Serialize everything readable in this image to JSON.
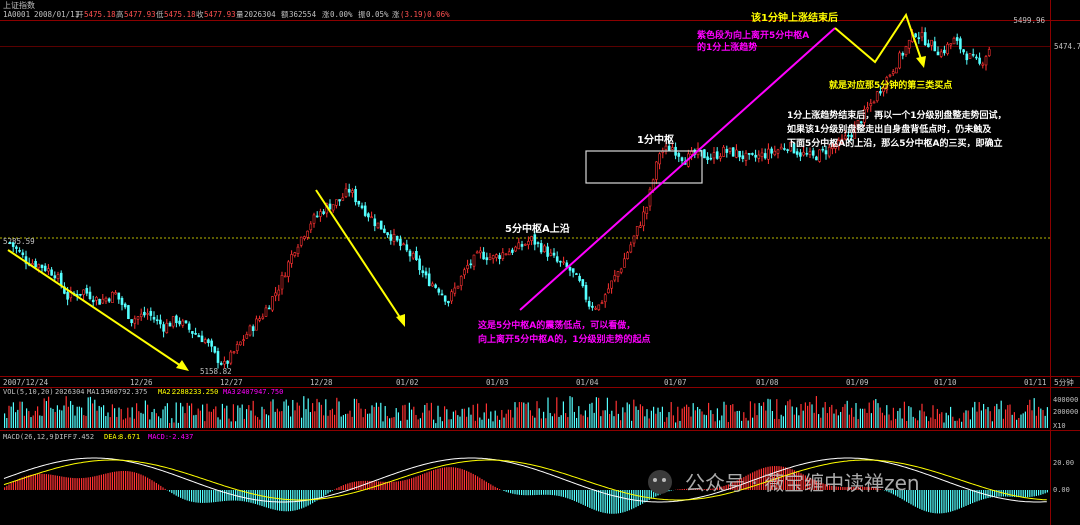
{
  "header": {
    "title": "上证指数",
    "code": "1A0001",
    "date": "2008/01/11",
    "open_label": "开",
    "open": "5475.18",
    "high_label": "高",
    "high": "5477.93",
    "low_label": "低",
    "low": "5475.18",
    "close_label": "收",
    "close": "5477.93",
    "volume_label": "量",
    "volume": "2026304",
    "amount_label": "额",
    "amount": "362554",
    "change_label": "涨",
    "change": "0.00%",
    "amplitude_label": "振",
    "amplitude": "0.05%",
    "rise_label": "涨",
    "rise": "(3.19)0.06%"
  },
  "price_axis": {
    "label_top": "5499.96",
    "label_right": "5474.7",
    "label_left": "5285.59",
    "label_low": "5158.82"
  },
  "date_axis": [
    "2007/12/24",
    "12/26",
    "12/27",
    "12/28",
    "01/02",
    "01/03",
    "01/04",
    "01/07",
    "01/08",
    "01/09",
    "01/10",
    "01/11"
  ],
  "date_axis_unit": "5分钟",
  "volume_panel": {
    "title": "VOL(5,10,20)",
    "value": "2026304",
    "ma1_label": "MA1:",
    "ma1": "1960792.375",
    "ma2_label": "MA2:",
    "ma2": "2288233.250",
    "ma3_label": "MA3:",
    "ma3": "2407947.750",
    "ticks": [
      "400000",
      "200000"
    ],
    "scale": "X10"
  },
  "macd_panel": {
    "title": "MACD(26,12,9)",
    "diff_label": "DIFF:",
    "diff": "7.452",
    "dea_label": "DEA:",
    "dea": "8.671",
    "macd_label": "MACD:",
    "macd": "-2.437",
    "ticks": [
      "20.00",
      "0.00"
    ]
  },
  "annotations": {
    "a1": "该1分钟上涨结束后",
    "a2_line1": "紫色段为向上离开5分中枢A",
    "a2_line2": "的1分上涨趋势",
    "a3": "就是对应那5分钟的第三类买点",
    "a4_line1": "1分上涨趋势结束后，再以一个1分级别盘整走势回试，",
    "a4_line2": "如果该1分级别盘整走出自身盘背低点时，仍未触及",
    "a4_line3": "下面5分中枢A的上沿，那么5分中枢A的三买，即确立",
    "a5": "1分中枢",
    "a6": "5分中枢A上沿",
    "a7_line1": "这是5分中枢A的震荡低点，可以看做，",
    "a7_line2": "向上离开5分中枢A的，1分级别走势的起点"
  },
  "watermark": "公众号 · 薇宝缠中读禅zen",
  "chart_data": {
    "type": "candlestick",
    "title": "上证指数",
    "x_labels": [
      "2007/12/24",
      "12/26",
      "12/27",
      "12/28",
      "01/02",
      "01/03",
      "01/04",
      "01/07",
      "01/08",
      "01/09",
      "01/10",
      "01/11"
    ],
    "ylim": [
      5158.82,
      5499.96
    ],
    "key_levels": {
      "zhongshu_A_upper": 5285.59,
      "low": 5158.82,
      "high": 5499.96
    },
    "price_path": [
      [
        0,
        5285
      ],
      [
        5,
        5268
      ],
      [
        10,
        5262
      ],
      [
        14,
        5255
      ],
      [
        18,
        5232
      ],
      [
        23,
        5238
      ],
      [
        28,
        5228
      ],
      [
        33,
        5235
      ],
      [
        38,
        5210
      ],
      [
        43,
        5216
      ],
      [
        48,
        5203
      ],
      [
        52,
        5210
      ],
      [
        57,
        5198
      ],
      [
        61,
        5190
      ],
      [
        64,
        5175
      ],
      [
        67,
        5165
      ],
      [
        70,
        5178
      ],
      [
        74,
        5196
      ],
      [
        79,
        5215
      ],
      [
        84,
        5242
      ],
      [
        89,
        5280
      ],
      [
        94,
        5305
      ],
      [
        99,
        5320
      ],
      [
        103,
        5326
      ],
      [
        106,
        5336
      ],
      [
        110,
        5320
      ],
      [
        114,
        5305
      ],
      [
        118,
        5295
      ],
      [
        122,
        5282
      ],
      [
        126,
        5270
      ],
      [
        130,
        5250
      ],
      [
        134,
        5240
      ],
      [
        137,
        5228
      ],
      [
        140,
        5245
      ],
      [
        143,
        5262
      ],
      [
        147,
        5274
      ],
      [
        151,
        5270
      ],
      [
        155,
        5276
      ],
      [
        159,
        5280
      ],
      [
        163,
        5288
      ],
      [
        167,
        5278
      ],
      [
        171,
        5266
      ],
      [
        175,
        5258
      ],
      [
        178,
        5245
      ],
      [
        181,
        5225
      ],
      [
        184,
        5223
      ],
      [
        187,
        5240
      ],
      [
        191,
        5262
      ],
      [
        195,
        5290
      ],
      [
        199,
        5320
      ],
      [
        203,
        5373
      ],
      [
        207,
        5378
      ],
      [
        211,
        5366
      ],
      [
        215,
        5372
      ],
      [
        219,
        5368
      ],
      [
        223,
        5374
      ],
      [
        227,
        5372
      ],
      [
        231,
        5366
      ],
      [
        235,
        5370
      ],
      [
        239,
        5374
      ],
      [
        243,
        5380
      ],
      [
        247,
        5372
      ],
      [
        251,
        5368
      ],
      [
        255,
        5375
      ],
      [
        259,
        5380
      ],
      [
        263,
        5392
      ],
      [
        267,
        5410
      ],
      [
        271,
        5430
      ],
      [
        275,
        5450
      ],
      [
        279,
        5470
      ],
      [
        283,
        5490
      ],
      [
        287,
        5480
      ],
      [
        291,
        5470
      ],
      [
        295,
        5482
      ],
      [
        299,
        5468
      ],
      [
        303,
        5458
      ],
      [
        306,
        5474
      ]
    ],
    "volume_ma": {
      "MA1": 1960792.375,
      "MA2": 2288233.25,
      "MA3": 2407947.75,
      "VOL": 2026304
    },
    "macd": {
      "DIFF": 7.452,
      "DEA": 8.671,
      "MACD": -2.437
    }
  },
  "colors": {
    "up": "#ff3232",
    "down": "#54ffff",
    "arrow_yellow": "#ffff00",
    "trend_magenta": "#ff00ff",
    "box": "#d8d8d8",
    "grid_red": "#8b0000",
    "dotted": "#b8b800"
  }
}
